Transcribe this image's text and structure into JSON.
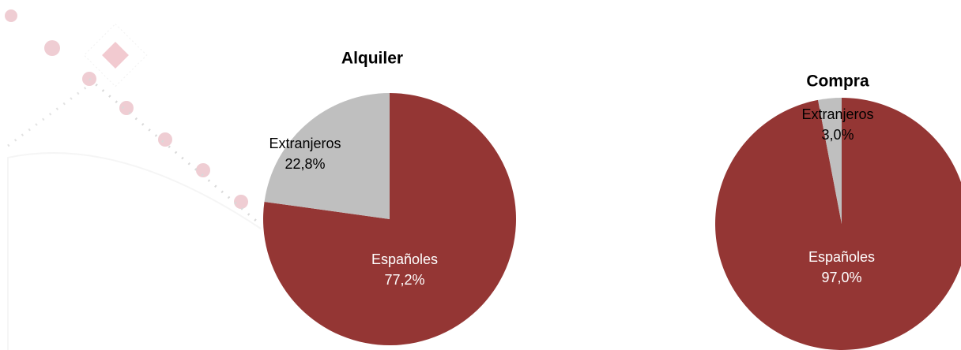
{
  "chart_data": [
    {
      "type": "pie",
      "title": "Alquiler",
      "categories": [
        "Españoles",
        "Extranjeros"
      ],
      "values": [
        77.2,
        22.8
      ],
      "value_labels": [
        "77,2%",
        "22,8%"
      ],
      "colors": [
        "#943634",
        "#bfbfbf"
      ]
    },
    {
      "type": "pie",
      "title": "Compra",
      "categories": [
        "Españoles",
        "Extranjeros"
      ],
      "values": [
        97.0,
        3.0
      ],
      "value_labels": [
        "97,0%",
        "3,0%"
      ],
      "colors": [
        "#943634",
        "#bfbfbf"
      ]
    }
  ]
}
